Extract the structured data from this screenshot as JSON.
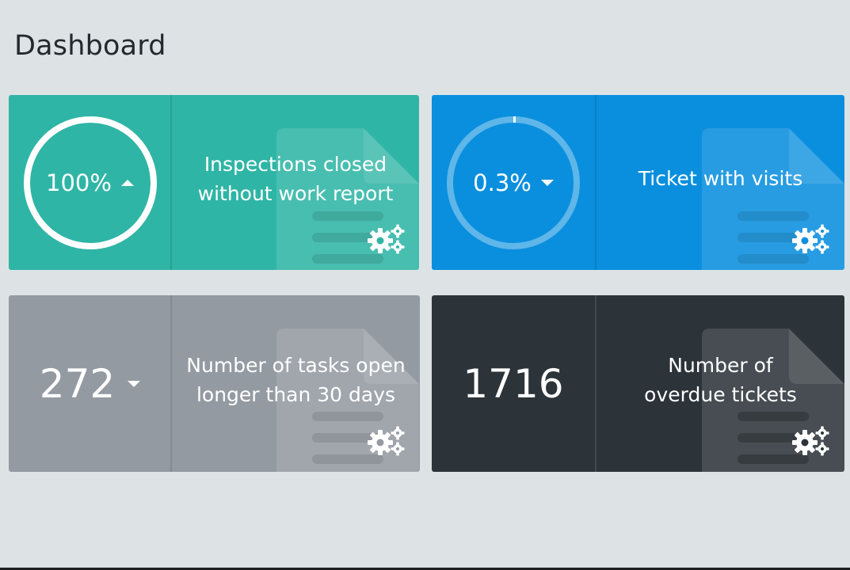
{
  "page": {
    "title": "Dashboard"
  },
  "cards": [
    {
      "label": "Inspections closed without work report",
      "value": "100%",
      "trend": "up",
      "progress": 1.0,
      "color": "#2fb5a6"
    },
    {
      "label": "Ticket with visits",
      "value": "0.3%",
      "trend": "down",
      "progress": 0.003,
      "color": "#0a8fde"
    },
    {
      "label": "Number of tasks open longer than 30 days",
      "value": "272",
      "trend": "down",
      "color": "#949aa2"
    },
    {
      "label": "Number of overdue tickets",
      "value": "1716",
      "trend": "none",
      "color": "#2c3339"
    }
  ],
  "icons": {
    "trend_up": "caret-up-icon",
    "trend_down": "caret-down-icon",
    "settings": "gears-icon",
    "background": "document-icon"
  }
}
